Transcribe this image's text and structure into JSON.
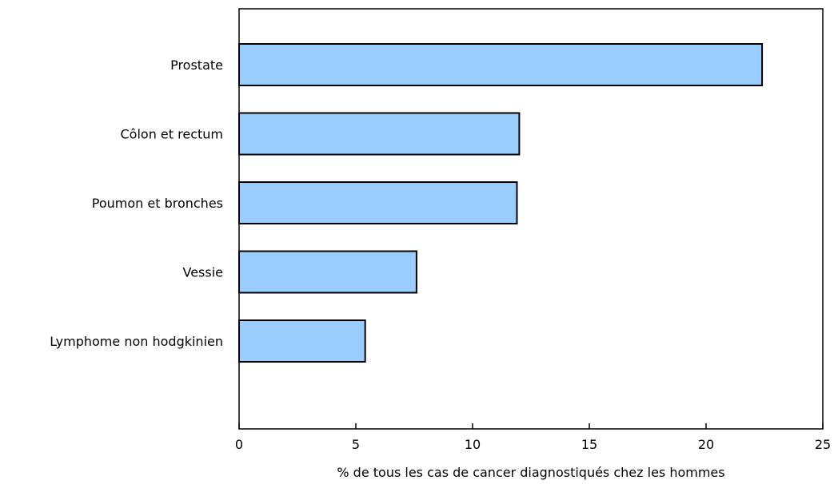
{
  "chart_data": {
    "type": "bar",
    "orientation": "horizontal",
    "title": "",
    "xlabel": "% de tous les cas de cancer diagnostiqués chez les hommes",
    "ylabel": "",
    "categories": [
      "Prostate",
      "Côlon et rectum",
      "Poumon et bronches",
      "Vessie",
      "Lymphome non hodgkinien"
    ],
    "values": [
      22.4,
      12.0,
      11.9,
      7.6,
      5.4
    ],
    "xlim": [
      0,
      25
    ],
    "xticks": [
      "0",
      "5",
      "10",
      "15",
      "20",
      "25"
    ],
    "bar_color": "#99ccff",
    "grid": false,
    "legend": "none"
  }
}
